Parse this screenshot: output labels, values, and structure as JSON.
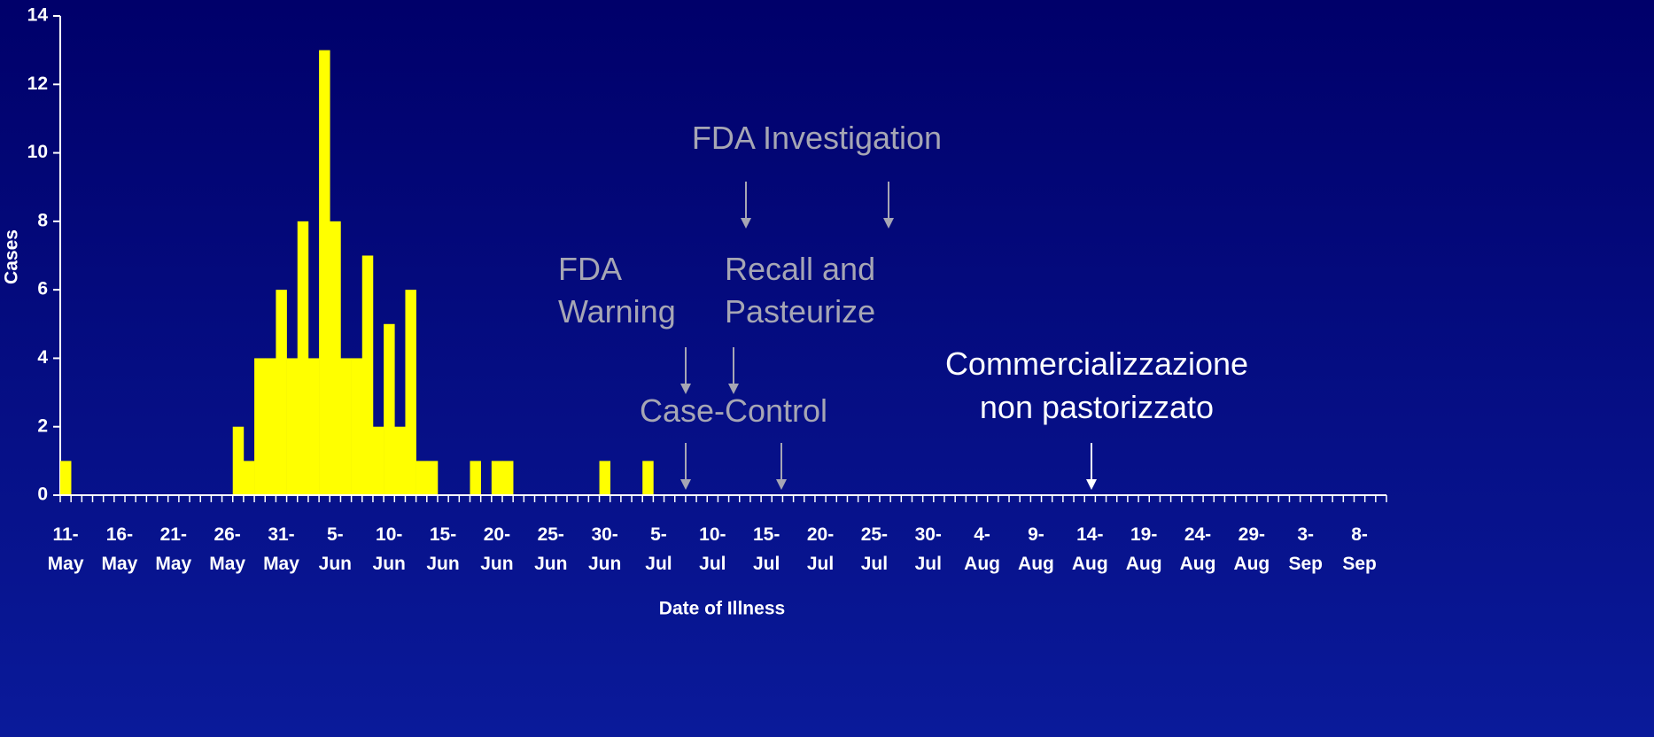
{
  "chart_data": {
    "type": "bar",
    "x_label": "Date of Illness",
    "y_label": "Cases",
    "categories": [
      "11- May",
      null,
      null,
      null,
      null,
      "16- May",
      null,
      null,
      null,
      null,
      "21- May",
      null,
      null,
      null,
      null,
      "26- May",
      null,
      null,
      null,
      null,
      "31- May",
      null,
      null,
      null,
      null,
      "5- Jun",
      null,
      null,
      null,
      null,
      "10- Jun",
      null,
      null,
      null,
      null,
      "15- Jun",
      null,
      null,
      null,
      null,
      "20- Jun",
      null,
      null,
      null,
      null,
      "25- Jun",
      null,
      null,
      null,
      null,
      "30- Jun",
      null,
      null,
      null,
      null,
      "5- Jul",
      null,
      null,
      null,
      null,
      "10- Jul",
      null,
      null,
      null,
      null,
      "15- Jul",
      null,
      null,
      null,
      null,
      "20- Jul",
      null,
      null,
      null,
      null,
      "25- Jul",
      null,
      null,
      null,
      null,
      "30- Jul",
      null,
      null,
      null,
      null,
      "4- Aug",
      null,
      null,
      null,
      null,
      "9- Aug",
      null,
      null,
      null,
      null,
      "14- Aug",
      null,
      null,
      null,
      null,
      "19- Aug",
      null,
      null,
      null,
      null,
      "24- Aug",
      null,
      null,
      null,
      null,
      "29- Aug",
      null,
      null,
      null,
      null,
      "3- Sep",
      null,
      null,
      null,
      null,
      "8- Sep",
      null,
      null
    ],
    "values": [
      1,
      0,
      0,
      0,
      0,
      0,
      0,
      0,
      0,
      0,
      0,
      0,
      0,
      0,
      0,
      0,
      2,
      1,
      4,
      4,
      6,
      4,
      8,
      4,
      13,
      8,
      4,
      4,
      7,
      2,
      5,
      2,
      6,
      1,
      1,
      0,
      0,
      0,
      1,
      0,
      1,
      1,
      0,
      0,
      0,
      0,
      0,
      0,
      0,
      0,
      1,
      0,
      0,
      0,
      1,
      0,
      0,
      0,
      0,
      0,
      0,
      0,
      0,
      0,
      0,
      0,
      0,
      0,
      0,
      0,
      0,
      0,
      0,
      0,
      0,
      0,
      0,
      0,
      0,
      0,
      0,
      0,
      0,
      0,
      0,
      0,
      0,
      0,
      0,
      0,
      0,
      0,
      0,
      0,
      0,
      0,
      0,
      0,
      0,
      0,
      0,
      0,
      0,
      0,
      0,
      0,
      0,
      0,
      0,
      0,
      0,
      0,
      0,
      0,
      0,
      0,
      0,
      0,
      0,
      0,
      0,
      0,
      0
    ],
    "color": "#ffff00",
    "ylim": [
      0,
      14
    ],
    "yticks": [
      0,
      2,
      4,
      6,
      8,
      10,
      12,
      14
    ],
    "annotations": [
      [
        "FDA Investigation"
      ],
      [
        "FDA",
        "Warning"
      ],
      [
        "Recall and",
        "Pasteurize"
      ],
      [
        "Case-Control"
      ],
      [
        "Commercializzazione",
        "non pastorizzato"
      ]
    ]
  }
}
